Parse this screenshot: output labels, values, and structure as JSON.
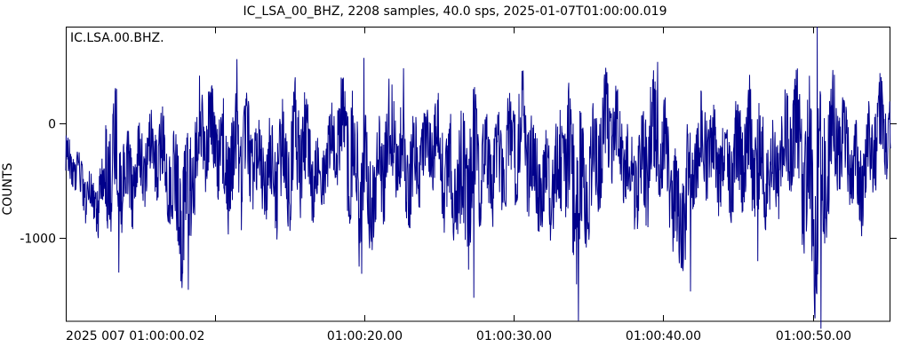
{
  "chart_data": {
    "type": "line",
    "subtype": "seismogram",
    "title": "IC_LSA_00_BHZ, 2208 samples, 40.0 sps, 2025-01-07T01:00:00.019",
    "station_label": "IC.LSA.00.BHZ.",
    "ylabel": "COUNTS",
    "network": "IC",
    "station": "LSA",
    "location": "00",
    "channel": "BHZ",
    "samples": 2208,
    "sampling_rate_sps": 40.0,
    "start_time": "2025-01-07T01:00:00.019",
    "duration_seconds": 55.175,
    "trace_color": "#00008B",
    "axis_color": "#000000",
    "background_color": "#ffffff",
    "grid": false,
    "ylim": [
      -1736,
      845
    ],
    "xlim_seconds": [
      0,
      55.175
    ],
    "y_ticks": [
      {
        "label": "0",
        "value": 0
      },
      {
        "label": "-1000",
        "value": -1000
      }
    ],
    "x_ticks": [
      {
        "label": "2025 007 01:00:00.02",
        "t": 0.001,
        "align": "left"
      },
      {
        "label": "",
        "t": 9.981,
        "align": "center"
      },
      {
        "label": "01:00:20.00",
        "t": 19.981,
        "align": "center"
      },
      {
        "label": "01:00:30.00",
        "t": 29.981,
        "align": "center"
      },
      {
        "label": "01:00:40.00",
        "t": 39.981,
        "align": "center"
      },
      {
        "label": "01:00:50.00",
        "t": 49.981,
        "align": "center"
      }
    ],
    "envelope_per_second": {
      "description": "approximate per-second max (hi) and min (lo) of the waveform in COUNTS, read from the plot",
      "hi": [
        -100,
        -200,
        -300,
        300,
        100,
        200,
        80,
        150,
        250,
        350,
        380,
        560,
        200,
        60,
        450,
        250,
        420,
        100,
        250,
        570,
        400,
        150,
        480,
        300,
        150,
        350,
        380,
        300,
        200,
        350,
        460,
        300,
        150,
        250,
        350,
        400,
        450,
        300,
        200,
        540,
        250,
        150,
        330,
        320,
        250,
        300,
        350,
        400,
        300,
        450,
        840,
        500,
        300,
        200,
        420,
        350
      ],
      "lo": [
        -650,
        -800,
        -950,
        -1300,
        -1000,
        -750,
        -800,
        -1000,
        -1450,
        -850,
        -700,
        -950,
        -1150,
        -850,
        -950,
        -1200,
        -900,
        -800,
        -700,
        -1050,
        -1300,
        -1250,
        -800,
        -900,
        -750,
        -900,
        -1100,
        -1520,
        -950,
        -800,
        -900,
        -1050,
        -950,
        -1250,
        -1720,
        -950,
        -800,
        -700,
        -900,
        -1100,
        -950,
        -1470,
        -1000,
        -850,
        -750,
        -950,
        -1200,
        -900,
        -850,
        -1000,
        -1750,
        -1100,
        -850,
        -950,
        -800,
        -700
      ]
    },
    "notable_spikes": [
      {
        "t": 3.4,
        "v": 300
      },
      {
        "t": 3.55,
        "v": -1300
      },
      {
        "t": 8.2,
        "v": -1450
      },
      {
        "t": 11.45,
        "v": 560
      },
      {
        "t": 19.95,
        "v": 570
      },
      {
        "t": 22.6,
        "v": 480
      },
      {
        "t": 27.3,
        "v": -1520
      },
      {
        "t": 30.6,
        "v": 460
      },
      {
        "t": 34.3,
        "v": -1720
      },
      {
        "t": 39.6,
        "v": 535
      },
      {
        "t": 41.8,
        "v": -1465
      },
      {
        "t": 46.3,
        "v": -1200
      },
      {
        "t": 50.28,
        "v": 840
      },
      {
        "t": 50.52,
        "v": -1790
      }
    ]
  }
}
